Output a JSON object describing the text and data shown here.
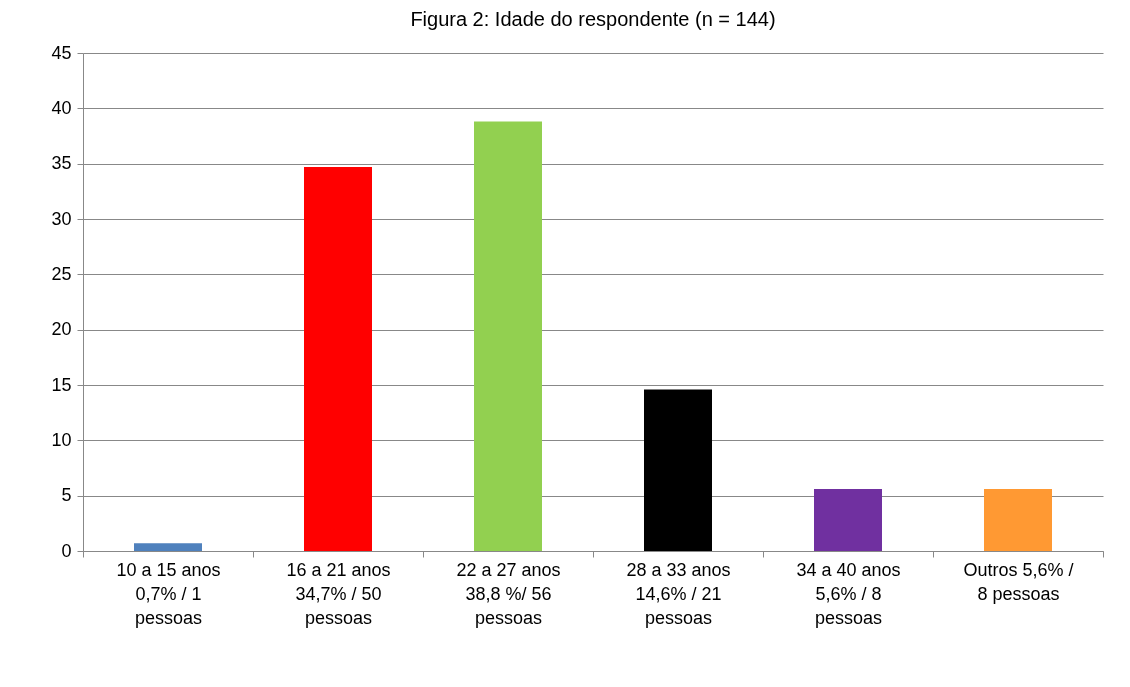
{
  "chart_data": {
    "type": "bar",
    "title": "Figura 2: Idade do respondente (n = 144)",
    "categories": [
      "10 a 15 anos\n0,7% / 1\npessoas",
      "16 a 21 anos\n34,7% / 50\npessoas",
      "22 a 27 anos\n38,8 %/ 56\npessoas",
      "28 a 33 anos\n14,6% / 21\npessoas",
      "34 a 40 anos\n5,6% / 8\npessoas",
      "Outros 5,6% /\n8 pessoas"
    ],
    "values": [
      0.7,
      34.7,
      38.8,
      14.6,
      5.6,
      5.6
    ],
    "colors": [
      "#4f81bd",
      "#ff0000",
      "#92d050",
      "#000000",
      "#7030a0",
      "#ff9933"
    ],
    "ylim": [
      0,
      45
    ],
    "yticks": [
      0,
      5,
      10,
      15,
      20,
      25,
      30,
      35,
      40,
      45
    ],
    "grid": "y",
    "legend": false
  }
}
